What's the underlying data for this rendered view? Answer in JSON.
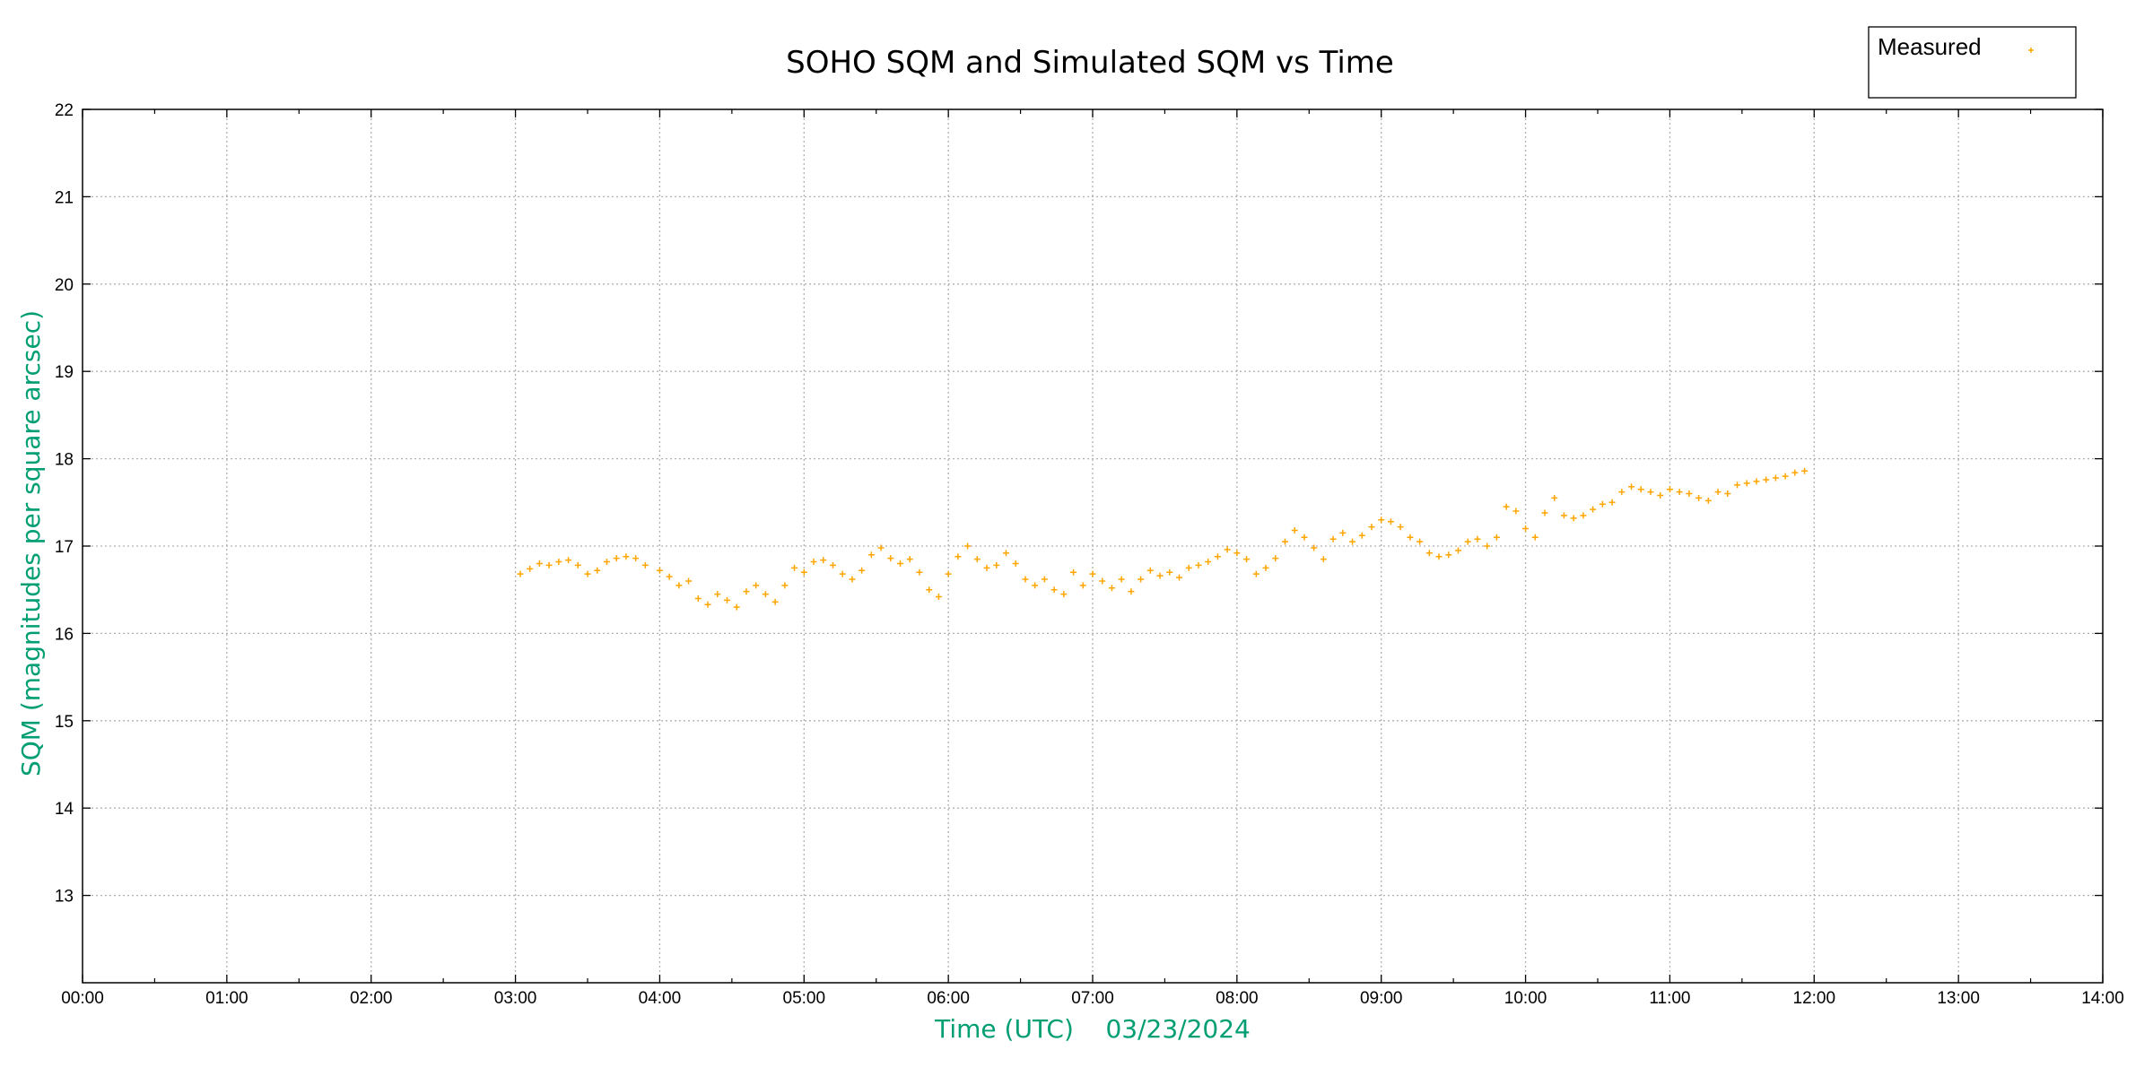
{
  "chart_data": {
    "type": "scatter",
    "title": "SOHO SQM and Simulated SQM vs Time",
    "xlabel": "Time (UTC)    03/23/2024",
    "ylabel": "SQM (magnitudes per square arcsec)",
    "xlim": [
      "00:00",
      "14:00"
    ],
    "ylim": [
      12,
      22
    ],
    "x_tick_labels": [
      "00:00",
      "01:00",
      "02:00",
      "03:00",
      "04:00",
      "05:00",
      "06:00",
      "07:00",
      "08:00",
      "09:00",
      "10:00",
      "11:00",
      "12:00",
      "13:00",
      "14:00"
    ],
    "y_tick_labels": [
      "13",
      "14",
      "15",
      "16",
      "17",
      "18",
      "19",
      "20",
      "21",
      "22"
    ],
    "grid": true,
    "legend_position": "top-right",
    "colors": {
      "measured": "#FFA500",
      "axis_title": "#009E73"
    },
    "series": [
      {
        "name": "Measured",
        "marker": "+",
        "points": [
          [
            "03:02",
            16.68
          ],
          [
            "03:06",
            16.74
          ],
          [
            "03:10",
            16.8
          ],
          [
            "03:14",
            16.78
          ],
          [
            "03:18",
            16.82
          ],
          [
            "03:22",
            16.84
          ],
          [
            "03:26",
            16.78
          ],
          [
            "03:30",
            16.68
          ],
          [
            "03:34",
            16.72
          ],
          [
            "03:38",
            16.82
          ],
          [
            "03:42",
            16.86
          ],
          [
            "03:46",
            16.88
          ],
          [
            "03:50",
            16.86
          ],
          [
            "03:54",
            16.78
          ],
          [
            "04:00",
            16.72
          ],
          [
            "04:04",
            16.65
          ],
          [
            "04:08",
            16.55
          ],
          [
            "04:12",
            16.6
          ],
          [
            "04:16",
            16.4
          ],
          [
            "04:20",
            16.33
          ],
          [
            "04:24",
            16.45
          ],
          [
            "04:28",
            16.38
          ],
          [
            "04:32",
            16.3
          ],
          [
            "04:36",
            16.48
          ],
          [
            "04:40",
            16.55
          ],
          [
            "04:44",
            16.45
          ],
          [
            "04:48",
            16.36
          ],
          [
            "04:52",
            16.55
          ],
          [
            "04:56",
            16.75
          ],
          [
            "05:00",
            16.7
          ],
          [
            "05:04",
            16.82
          ],
          [
            "05:08",
            16.84
          ],
          [
            "05:12",
            16.78
          ],
          [
            "05:16",
            16.68
          ],
          [
            "05:20",
            16.62
          ],
          [
            "05:24",
            16.72
          ],
          [
            "05:28",
            16.9
          ],
          [
            "05:32",
            16.98
          ],
          [
            "05:36",
            16.86
          ],
          [
            "05:40",
            16.8
          ],
          [
            "05:44",
            16.85
          ],
          [
            "05:48",
            16.7
          ],
          [
            "05:52",
            16.5
          ],
          [
            "05:56",
            16.42
          ],
          [
            "06:00",
            16.68
          ],
          [
            "06:04",
            16.88
          ],
          [
            "06:08",
            17.0
          ],
          [
            "06:12",
            16.85
          ],
          [
            "06:16",
            16.75
          ],
          [
            "06:20",
            16.78
          ],
          [
            "06:24",
            16.92
          ],
          [
            "06:28",
            16.8
          ],
          [
            "06:32",
            16.62
          ],
          [
            "06:36",
            16.55
          ],
          [
            "06:40",
            16.62
          ],
          [
            "06:44",
            16.5
          ],
          [
            "06:48",
            16.45
          ],
          [
            "06:52",
            16.7
          ],
          [
            "06:56",
            16.55
          ],
          [
            "07:00",
            16.68
          ],
          [
            "07:04",
            16.6
          ],
          [
            "07:08",
            16.52
          ],
          [
            "07:12",
            16.62
          ],
          [
            "07:16",
            16.48
          ],
          [
            "07:20",
            16.62
          ],
          [
            "07:24",
            16.72
          ],
          [
            "07:28",
            16.66
          ],
          [
            "07:32",
            16.7
          ],
          [
            "07:36",
            16.64
          ],
          [
            "07:40",
            16.75
          ],
          [
            "07:44",
            16.78
          ],
          [
            "07:48",
            16.82
          ],
          [
            "07:52",
            16.88
          ],
          [
            "07:56",
            16.96
          ],
          [
            "08:00",
            16.92
          ],
          [
            "08:04",
            16.85
          ],
          [
            "08:08",
            16.68
          ],
          [
            "08:12",
            16.75
          ],
          [
            "08:16",
            16.86
          ],
          [
            "08:20",
            17.05
          ],
          [
            "08:24",
            17.18
          ],
          [
            "08:28",
            17.1
          ],
          [
            "08:32",
            16.98
          ],
          [
            "08:36",
            16.85
          ],
          [
            "08:40",
            17.08
          ],
          [
            "08:44",
            17.15
          ],
          [
            "08:48",
            17.05
          ],
          [
            "08:52",
            17.12
          ],
          [
            "08:56",
            17.22
          ],
          [
            "09:00",
            17.3
          ],
          [
            "09:04",
            17.28
          ],
          [
            "09:08",
            17.22
          ],
          [
            "09:12",
            17.1
          ],
          [
            "09:16",
            17.05
          ],
          [
            "09:20",
            16.92
          ],
          [
            "09:24",
            16.88
          ],
          [
            "09:28",
            16.9
          ],
          [
            "09:32",
            16.95
          ],
          [
            "09:36",
            17.05
          ],
          [
            "09:40",
            17.08
          ],
          [
            "09:44",
            17.0
          ],
          [
            "09:48",
            17.1
          ],
          [
            "09:52",
            17.45
          ],
          [
            "09:56",
            17.4
          ],
          [
            "10:00",
            17.2
          ],
          [
            "10:04",
            17.1
          ],
          [
            "10:08",
            17.38
          ],
          [
            "10:12",
            17.55
          ],
          [
            "10:16",
            17.35
          ],
          [
            "10:20",
            17.32
          ],
          [
            "10:24",
            17.35
          ],
          [
            "10:28",
            17.42
          ],
          [
            "10:32",
            17.48
          ],
          [
            "10:36",
            17.5
          ],
          [
            "10:40",
            17.62
          ],
          [
            "10:44",
            17.68
          ],
          [
            "10:48",
            17.65
          ],
          [
            "10:52",
            17.62
          ],
          [
            "10:56",
            17.58
          ],
          [
            "11:00",
            17.65
          ],
          [
            "11:04",
            17.62
          ],
          [
            "11:08",
            17.6
          ],
          [
            "11:12",
            17.55
          ],
          [
            "11:16",
            17.52
          ],
          [
            "11:20",
            17.62
          ],
          [
            "11:24",
            17.6
          ],
          [
            "11:28",
            17.7
          ],
          [
            "11:32",
            17.72
          ],
          [
            "11:36",
            17.74
          ],
          [
            "11:40",
            17.76
          ],
          [
            "11:44",
            17.78
          ],
          [
            "11:48",
            17.8
          ],
          [
            "11:52",
            17.84
          ],
          [
            "11:56",
            17.86
          ]
        ]
      }
    ]
  }
}
